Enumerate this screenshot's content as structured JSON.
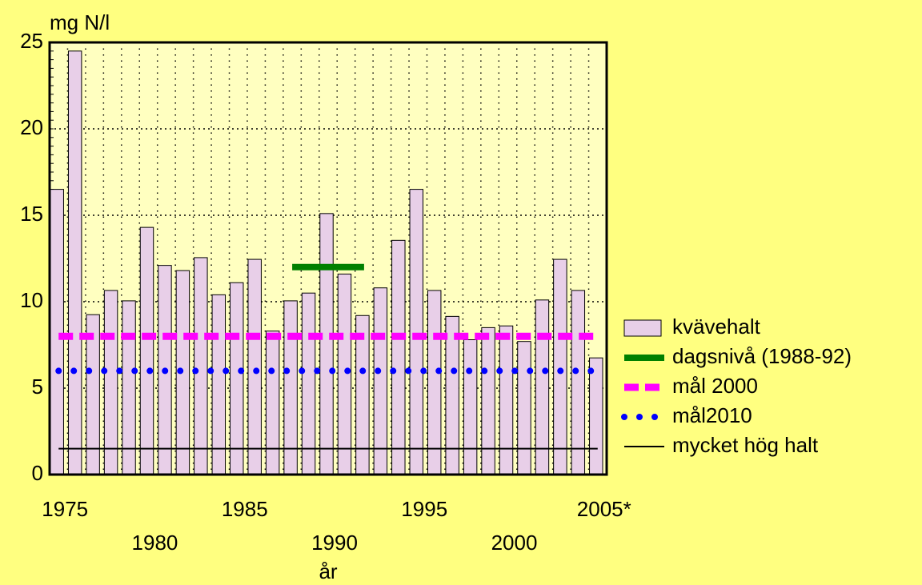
{
  "chart_data": {
    "type": "bar",
    "y_label": "mg N/l",
    "x_label": "år",
    "categories": [
      "1975",
      null,
      null,
      null,
      null,
      "1980",
      null,
      null,
      null,
      null,
      "1985",
      null,
      null,
      null,
      null,
      "1990",
      null,
      null,
      null,
      null,
      "1995",
      null,
      null,
      null,
      null,
      "2000",
      null,
      null,
      null,
      null,
      "2005*"
    ],
    "series": [
      {
        "name": "kvävehalt",
        "type": "bar",
        "color": "#e8cfe8",
        "values": [
          16.5,
          24.5,
          9.25,
          10.65,
          10.05,
          14.3,
          12.1,
          11.8,
          12.55,
          10.4,
          11.1,
          12.45,
          8.3,
          10.05,
          10.5,
          15.1,
          11.6,
          9.2,
          10.8,
          13.55,
          16.5,
          10.65,
          9.15,
          7.8,
          8.5,
          8.6,
          7.7,
          10.1,
          12.45,
          10.65,
          6.75
        ]
      },
      {
        "name": "dagsnivå (1988-92)",
        "type": "line",
        "style": "solid",
        "color": "#008000",
        "values": [
          null,
          null,
          null,
          null,
          null,
          null,
          null,
          null,
          null,
          null,
          null,
          null,
          null,
          12,
          12,
          12,
          12,
          12,
          null,
          null,
          null,
          null,
          null,
          null,
          null,
          null,
          null,
          null,
          null,
          null,
          null
        ]
      },
      {
        "name": "mål 2000",
        "type": "line",
        "style": "dash",
        "color": "#ff00ff",
        "values": [
          8,
          8,
          8,
          8,
          8,
          8,
          8,
          8,
          8,
          8,
          8,
          8,
          8,
          8,
          8,
          8,
          8,
          8,
          8,
          8,
          8,
          8,
          8,
          8,
          8,
          8,
          8,
          8,
          8,
          8,
          8
        ]
      },
      {
        "name": "mål2010",
        "type": "line",
        "style": "dot",
        "color": "#0000ff",
        "values": [
          6,
          6,
          6,
          6,
          6,
          6,
          6,
          6,
          6,
          6,
          6,
          6,
          6,
          6,
          6,
          6,
          6,
          6,
          6,
          6,
          6,
          6,
          6,
          6,
          6,
          6,
          6,
          6,
          6,
          6,
          6
        ]
      },
      {
        "name": "mycket hög halt",
        "type": "line",
        "style": "thin",
        "color": "#000000",
        "values": [
          1.5,
          1.5,
          1.5,
          1.5,
          1.5,
          1.5,
          1.5,
          1.5,
          1.5,
          1.5,
          1.5,
          1.5,
          1.5,
          1.5,
          1.5,
          1.5,
          1.5,
          1.5,
          1.5,
          1.5,
          1.5,
          1.5,
          1.5,
          1.5,
          1.5,
          1.5,
          1.5,
          1.5,
          1.5,
          1.5,
          1.5
        ]
      }
    ],
    "ylim": [
      0,
      25
    ],
    "yticks": [
      0,
      5,
      10,
      15,
      20,
      25
    ],
    "grid": true,
    "legend": "right"
  }
}
